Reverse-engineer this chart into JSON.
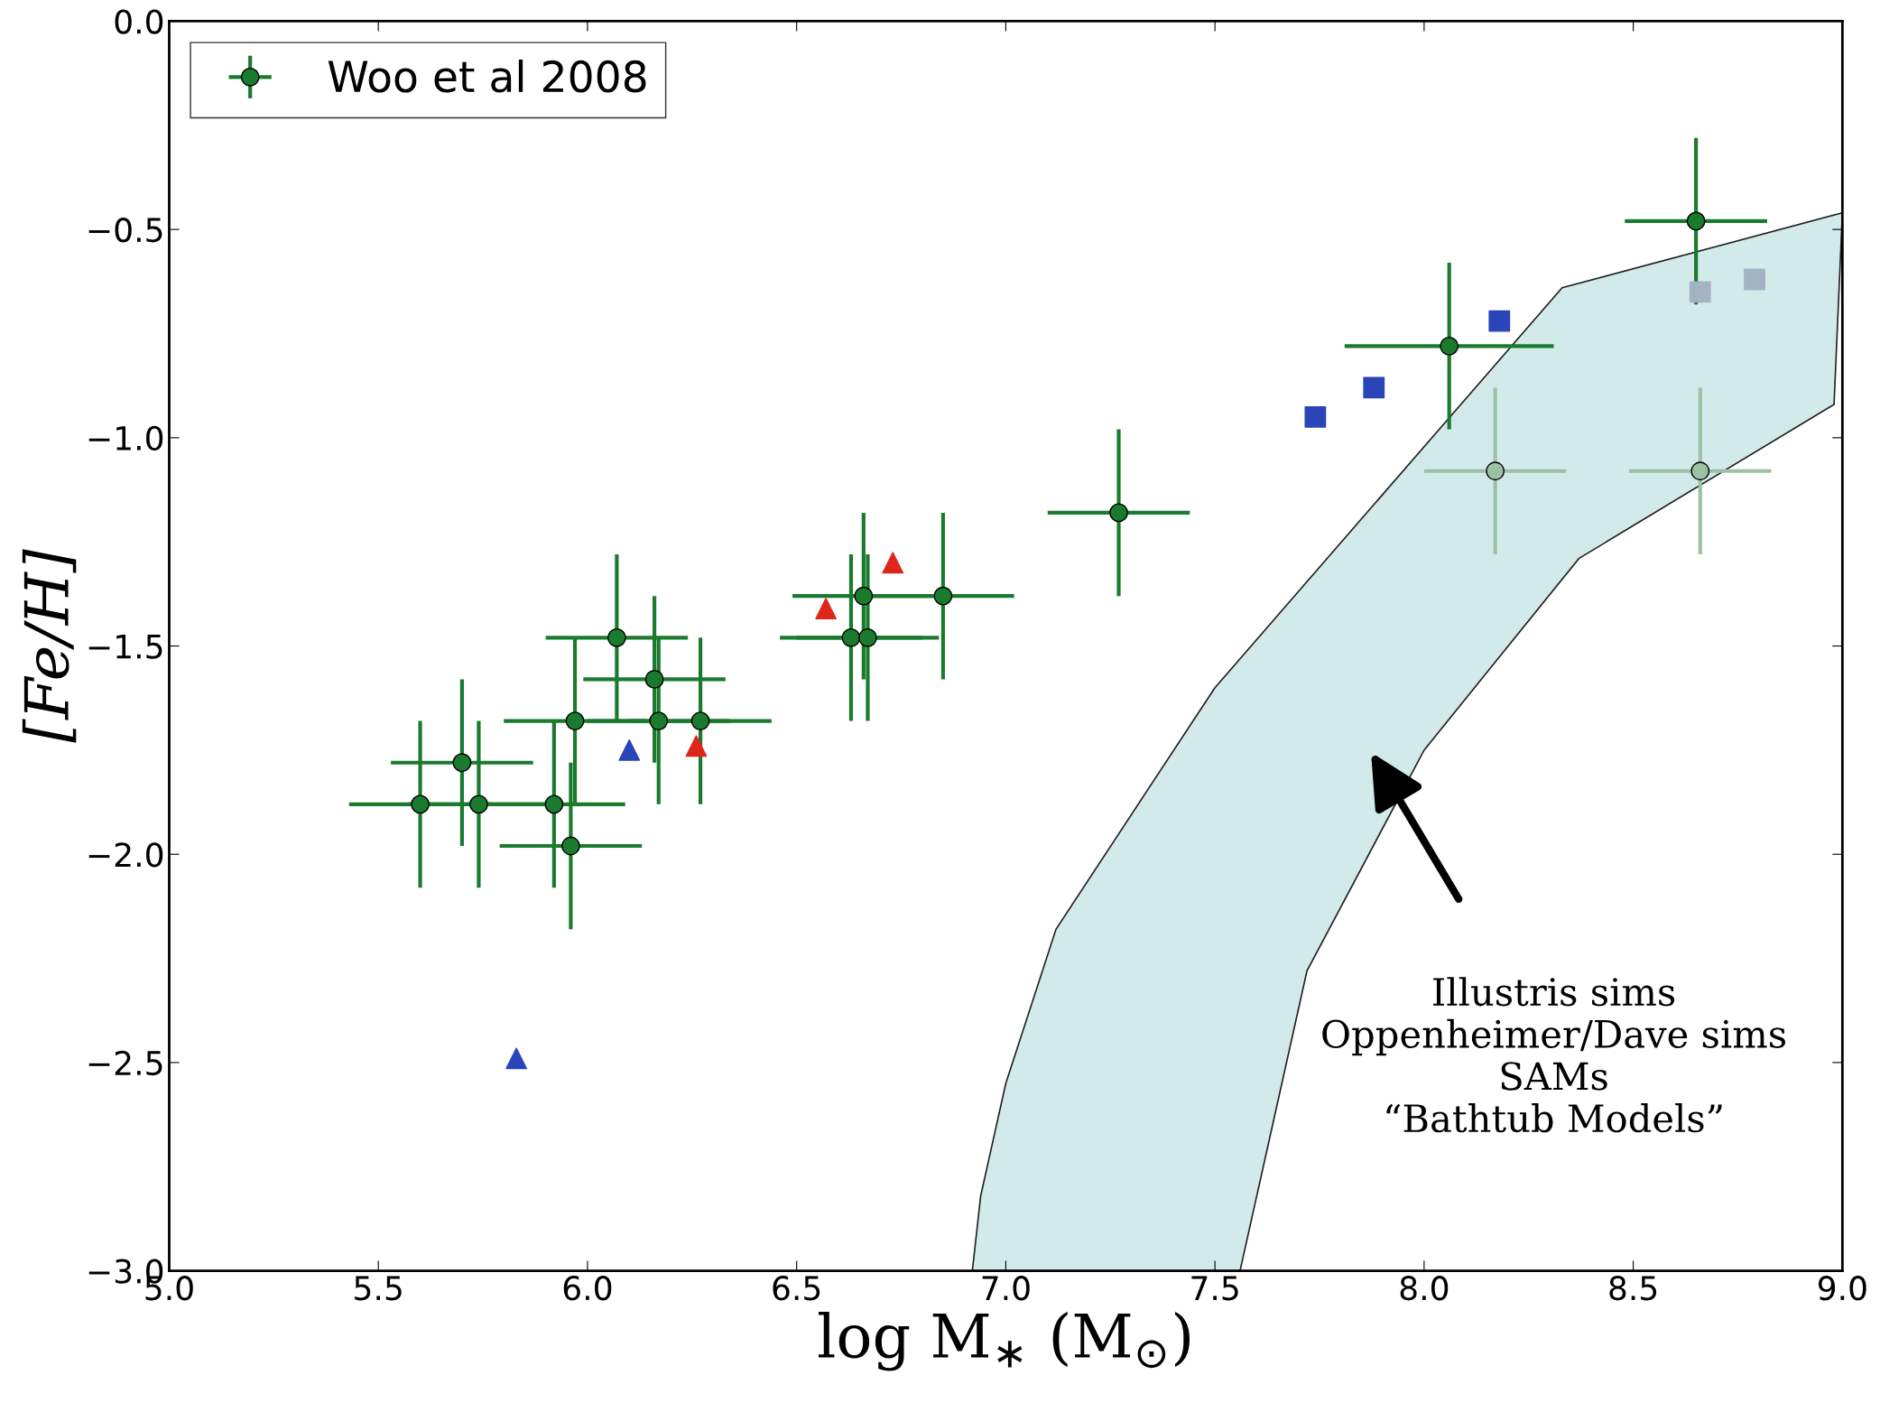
{
  "chart_data": {
    "type": "scatter",
    "xlabel": "log M$_{∗}$ (M$_{⊙}$)",
    "ylabel": "[Fe/H]",
    "xlim": [
      5.0,
      9.0
    ],
    "ylim": [
      -3.0,
      0.0
    ],
    "xticks": [
      {
        "value": 5.0,
        "label": "5.0"
      },
      {
        "value": 5.5,
        "label": "5.5"
      },
      {
        "value": 6.0,
        "label": "6.0"
      },
      {
        "value": 6.5,
        "label": "6.5"
      },
      {
        "value": 7.0,
        "label": "7.0"
      },
      {
        "value": 7.5,
        "label": "7.5"
      },
      {
        "value": 8.0,
        "label": "8.0"
      },
      {
        "value": 8.5,
        "label": "8.5"
      },
      {
        "value": 9.0,
        "label": "9.0"
      }
    ],
    "yticks": [
      {
        "value": -3.0,
        "label": "−3.0"
      },
      {
        "value": -2.5,
        "label": "−2.5"
      },
      {
        "value": -2.0,
        "label": "−2.0"
      },
      {
        "value": -1.5,
        "label": "−1.5"
      },
      {
        "value": -1.0,
        "label": "−1.0"
      },
      {
        "value": -0.5,
        "label": "−0.5"
      },
      {
        "value": 0.0,
        "label": "0.0"
      }
    ],
    "grid": false,
    "legend": "top left",
    "series": [
      {
        "type": "area",
        "color": "#d3eaea",
        "x": [
          6.92,
          6.94,
          7.0,
          7.12,
          7.5,
          8.33,
          9.0,
          8.98,
          8.37,
          8.0,
          7.72,
          7.56
        ],
        "values": [
          -3.0,
          -2.82,
          -2.55,
          -2.18,
          -1.6,
          -0.64,
          -0.46,
          -0.92,
          -1.29,
          -1.75,
          -2.28,
          -3.0
        ]
      },
      {
        "color": "#9cc1a4",
        "marker": "circle",
        "x": [
          8.17,
          8.66
        ],
        "values": [
          -1.08,
          -1.08
        ],
        "errors": [
          0.2,
          0.2
        ],
        "xerrors": [
          0.17,
          0.17
        ]
      },
      {
        "name": "Woo et al 2008",
        "color": "#1a7a2e",
        "marker": "circle",
        "x": [
          5.6,
          5.7,
          5.74,
          5.92,
          5.96,
          5.97,
          6.07,
          6.16,
          6.17,
          6.27,
          6.63,
          6.66,
          6.67,
          6.85,
          7.27,
          8.06,
          8.65
        ],
        "values": [
          -1.88,
          -1.78,
          -1.88,
          -1.88,
          -1.98,
          -1.68,
          -1.48,
          -1.58,
          -1.68,
          -1.68,
          -1.48,
          -1.38,
          -1.48,
          -1.38,
          -1.18,
          -0.78,
          -0.48
        ],
        "errors": [
          0.2,
          0.2,
          0.2,
          0.2,
          0.2,
          0.2,
          0.2,
          0.2,
          0.2,
          0.2,
          0.2,
          0.2,
          0.2,
          0.2,
          0.2,
          0.2,
          0.2
        ],
        "xerrors": [
          0.17,
          0.17,
          0.17,
          0.17,
          0.17,
          0.17,
          0.17,
          0.17,
          0.17,
          0.17,
          0.17,
          0.17,
          0.17,
          0.17,
          0.17,
          0.25,
          0.17
        ]
      },
      {
        "color": "#2a45b8",
        "marker": "triangle",
        "x": [
          6.1,
          5.83
        ],
        "values": [
          -1.75,
          -2.49
        ]
      },
      {
        "color": "#e0251b",
        "marker": "triangle",
        "x": [
          6.26,
          6.57,
          6.73
        ],
        "values": [
          -1.74,
          -1.41,
          -1.3
        ]
      },
      {
        "color": "#2a45b8",
        "marker": "square",
        "x": [
          7.74,
          7.88,
          8.18
        ],
        "values": [
          -0.95,
          -0.88,
          -0.72
        ]
      },
      {
        "color": "#a3b3c3",
        "marker": "square",
        "x": [
          8.66,
          8.79
        ],
        "values": [
          -0.65,
          -0.62
        ]
      }
    ],
    "annotations": [
      "Illustris sims\nOppenheimer/Dave sims\nSAMs\n“Bathtub Models”"
    ]
  }
}
